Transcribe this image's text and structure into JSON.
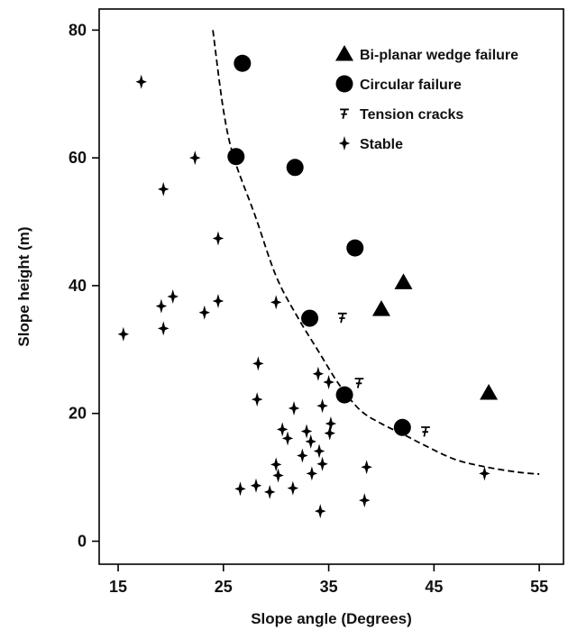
{
  "chart_data": {
    "type": "scatter",
    "xlabel": "Slope angle (Degrees)",
    "ylabel": "Slope height (m)",
    "xlim": [
      13.2,
      57.3
    ],
    "ylim": [
      -3.6,
      83.3
    ],
    "xticks": [
      "15",
      "25",
      "35",
      "45",
      "55"
    ],
    "yticks": [
      "0",
      "20",
      "40",
      "60",
      "80"
    ],
    "grid": false,
    "legend_position": "top-right",
    "colors": {
      "marker": "#000000",
      "axis": "#000000",
      "background": "#ffffff"
    },
    "series": [
      {
        "name": "Bi-planar wedge failure",
        "marker": "triangle",
        "points": [
          [
            40.0,
            36.3
          ],
          [
            42.1,
            40.5
          ],
          [
            50.2,
            23.2
          ]
        ]
      },
      {
        "name": "Circular failure",
        "marker": "circle",
        "points": [
          [
            26.8,
            74.8
          ],
          [
            26.2,
            60.2
          ],
          [
            31.8,
            58.5
          ],
          [
            37.5,
            45.9
          ],
          [
            33.2,
            34.9
          ],
          [
            36.5,
            22.9
          ],
          [
            42.0,
            17.8
          ]
        ]
      },
      {
        "name": "Tension cracks",
        "marker": "tension-crack",
        "points": [
          [
            36.3,
            35.0
          ],
          [
            37.9,
            24.8
          ],
          [
            44.2,
            17.2
          ]
        ]
      },
      {
        "name": "Stable",
        "marker": "star",
        "points": [
          [
            17.2,
            71.9
          ],
          [
            22.3,
            60.0
          ],
          [
            19.3,
            55.1
          ],
          [
            24.5,
            47.4
          ],
          [
            20.2,
            38.3
          ],
          [
            19.1,
            36.8
          ],
          [
            24.5,
            37.6
          ],
          [
            23.2,
            35.8
          ],
          [
            30.0,
            37.4
          ],
          [
            19.3,
            33.3
          ],
          [
            15.5,
            32.4
          ],
          [
            28.3,
            27.8
          ],
          [
            34.0,
            26.2
          ],
          [
            35.0,
            24.9
          ],
          [
            28.2,
            22.2
          ],
          [
            34.4,
            21.2
          ],
          [
            31.7,
            20.8
          ],
          [
            35.2,
            18.4
          ],
          [
            30.6,
            17.5
          ],
          [
            32.9,
            17.2
          ],
          [
            31.1,
            16.1
          ],
          [
            35.1,
            16.9
          ],
          [
            33.3,
            15.6
          ],
          [
            34.1,
            14.1
          ],
          [
            32.5,
            13.4
          ],
          [
            30.0,
            12.0
          ],
          [
            34.4,
            12.1
          ],
          [
            38.6,
            11.6
          ],
          [
            30.2,
            10.3
          ],
          [
            33.4,
            10.6
          ],
          [
            49.8,
            10.6
          ],
          [
            28.1,
            8.7
          ],
          [
            26.6,
            8.2
          ],
          [
            29.4,
            7.7
          ],
          [
            31.6,
            8.3
          ],
          [
            38.4,
            6.4
          ],
          [
            34.2,
            4.7
          ]
        ]
      },
      {
        "name": "",
        "marker": "dashed-line",
        "points": [
          [
            24.0,
            80.0
          ],
          [
            25.0,
            67.5
          ],
          [
            26.0,
            60.0
          ],
          [
            28.0,
            51.0
          ],
          [
            30.0,
            41.5
          ],
          [
            32.0,
            35.2
          ],
          [
            34.0,
            29.8
          ],
          [
            36.0,
            24.5
          ],
          [
            38.0,
            20.5
          ],
          [
            40.0,
            18.4
          ],
          [
            42.0,
            16.8
          ],
          [
            44.0,
            15.1
          ],
          [
            47.0,
            12.8
          ],
          [
            50.0,
            11.6
          ],
          [
            53.0,
            10.8
          ],
          [
            55.0,
            10.5
          ]
        ]
      }
    ]
  }
}
